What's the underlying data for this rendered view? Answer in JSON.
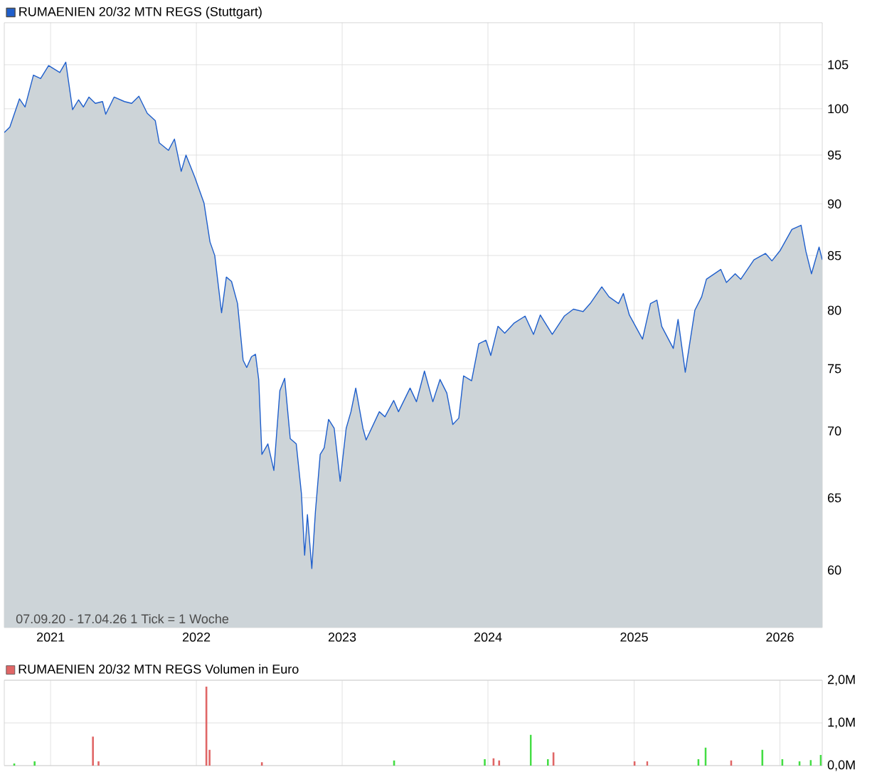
{
  "chart_data": [
    {
      "type": "area",
      "log": "y",
      "grid": true,
      "legend": "top left",
      "xlim": [
        "2020-09-07",
        "2026-04-17"
      ],
      "xticks": [
        {
          "value": "2021-01-01",
          "label": "2021"
        },
        {
          "value": "2022-01-01",
          "label": "2022"
        },
        {
          "value": "2023-01-01",
          "label": "2023"
        },
        {
          "value": "2024-01-01",
          "label": "2024"
        },
        {
          "value": "2025-01-01",
          "label": "2025"
        },
        {
          "value": "2026-01-01",
          "label": "2026"
        }
      ],
      "ylim": [
        56.3,
        110
      ],
      "yticks": [
        60,
        65,
        70,
        75,
        80,
        85,
        90,
        95,
        100,
        105
      ],
      "annotations": [
        "07.09.20 - 17.04.26   1 Tick = 1 Woche"
      ],
      "series": [
        {
          "name": "RUMAENIEN 20/32 MTN REGS (Stuttgart)",
          "color": "#1f5fcc",
          "x": [
            "2020-09-07",
            "2020-09-21",
            "2020-10-15",
            "2020-10-29",
            "2020-11-19",
            "2020-12-07",
            "2020-12-27",
            "2021-01-24",
            "2021-02-08",
            "2021-02-25",
            "2021-03-12",
            "2021-03-24",
            "2021-04-07",
            "2021-04-23",
            "2021-05-11",
            "2021-05-19",
            "2021-06-09",
            "2021-07-05",
            "2021-07-23",
            "2021-08-10",
            "2021-08-31",
            "2021-09-20",
            "2021-09-30",
            "2021-10-23",
            "2021-11-07",
            "2021-11-24",
            "2021-12-06",
            "2021-12-28",
            "2022-01-20",
            "2022-02-04",
            "2022-02-16",
            "2022-03-05",
            "2022-03-17",
            "2022-03-30",
            "2022-04-14",
            "2022-04-28",
            "2022-05-07",
            "2022-05-19",
            "2022-05-29",
            "2022-06-06",
            "2022-06-14",
            "2022-06-29",
            "2022-07-14",
            "2022-07-29",
            "2022-08-10",
            "2022-08-24",
            "2022-09-08",
            "2022-09-21",
            "2022-09-29",
            "2022-10-06",
            "2022-10-17",
            "2022-10-26",
            "2022-11-07",
            "2022-11-17",
            "2022-11-28",
            "2022-12-12",
            "2022-12-27",
            "2023-01-11",
            "2023-01-23",
            "2023-02-04",
            "2023-02-22",
            "2023-03-02",
            "2023-04-04",
            "2023-04-18",
            "2023-05-10",
            "2023-05-22",
            "2023-06-20",
            "2023-07-06",
            "2023-07-26",
            "2023-08-16",
            "2023-09-03",
            "2023-09-20",
            "2023-10-05",
            "2023-10-20",
            "2023-11-01",
            "2023-11-21",
            "2023-12-09",
            "2023-12-27",
            "2024-01-08",
            "2024-01-26",
            "2024-02-12",
            "2024-03-07",
            "2024-04-03",
            "2024-04-24",
            "2024-05-11",
            "2024-06-10",
            "2024-07-10",
            "2024-08-02",
            "2024-08-26",
            "2024-09-13",
            "2024-10-12",
            "2024-10-30",
            "2024-11-23",
            "2024-12-05",
            "2024-12-20",
            "2025-01-22",
            "2025-02-11",
            "2025-02-27",
            "2025-03-11",
            "2025-04-09",
            "2025-04-21",
            "2025-05-09",
            "2025-06-02",
            "2025-06-19",
            "2025-07-01",
            "2025-08-06",
            "2025-08-20",
            "2025-09-11",
            "2025-09-25",
            "2025-10-28",
            "2025-11-26",
            "2025-12-12",
            "2026-01-02",
            "2026-01-31",
            "2026-02-23",
            "2026-03-07",
            "2026-03-21",
            "2026-04-09",
            "2026-04-17"
          ],
          "values": [
            97.4,
            98.0,
            101.1,
            100.2,
            103.8,
            103.4,
            104.9,
            104.1,
            105.3,
            99.9,
            101.0,
            100.2,
            101.3,
            100.6,
            100.8,
            99.4,
            101.3,
            100.8,
            100.6,
            101.4,
            99.5,
            98.7,
            96.3,
            95.5,
            96.7,
            93.3,
            95.0,
            92.7,
            90.1,
            86.3,
            85.0,
            79.8,
            83.0,
            82.6,
            80.6,
            75.7,
            75.1,
            76.0,
            76.2,
            74.1,
            68.2,
            69.0,
            67.0,
            73.2,
            74.2,
            69.4,
            69.0,
            65.3,
            61.0,
            63.8,
            60.1,
            64.0,
            68.2,
            68.7,
            70.9,
            70.2,
            66.2,
            70.2,
            71.5,
            73.4,
            70.2,
            69.3,
            71.5,
            71.1,
            72.4,
            71.5,
            73.4,
            72.3,
            74.8,
            72.3,
            74.1,
            73.0,
            70.5,
            71.0,
            74.4,
            74.0,
            77.1,
            77.4,
            76.1,
            78.6,
            78.0,
            78.9,
            79.5,
            77.9,
            79.6,
            77.9,
            79.5,
            80.1,
            79.9,
            80.6,
            82.1,
            81.2,
            80.6,
            81.5,
            79.6,
            77.5,
            80.6,
            80.9,
            78.6,
            76.7,
            79.2,
            74.7,
            80.0,
            81.2,
            82.8,
            83.7,
            82.5,
            83.3,
            82.8,
            84.6,
            85.2,
            84.5,
            85.5,
            87.5,
            87.9,
            85.4,
            83.3,
            85.8,
            84.6
          ]
        }
      ]
    },
    {
      "type": "bar",
      "grid": true,
      "legend": "top left",
      "tick_labels": "y",
      "xlim": [
        "2020-09-07",
        "2026-04-17"
      ],
      "xticks": [
        {
          "value": "2021-01-01",
          "label": null
        },
        {
          "value": "2022-01-01",
          "label": null
        },
        {
          "value": "2023-01-01",
          "label": null
        },
        {
          "value": "2024-01-01",
          "label": null
        },
        {
          "value": "2025-01-01",
          "label": null
        },
        {
          "value": "2026-01-01",
          "label": null
        }
      ],
      "ylim": [
        0,
        2
      ],
      "yticks": [
        {
          "value": 0,
          "label": "0,0M"
        },
        {
          "value": 1,
          "label": "1,0M"
        },
        {
          "value": 2,
          "label": "2,0M"
        }
      ],
      "series": [
        {
          "name": "RUMAENIEN 20/32 MTN REGS Volumen in Euro",
          "color": "#e06666",
          "x": [
            "2020-10-02",
            "2020-11-22",
            "2021-04-17",
            "2021-05-01",
            "2022-01-26",
            "2022-02-03",
            "2022-06-14",
            "2023-05-11",
            "2023-12-24",
            "2024-01-15",
            "2024-01-29",
            "2024-04-17",
            "2024-05-30",
            "2024-06-13",
            "2025-01-02",
            "2025-02-03",
            "2025-06-11",
            "2025-06-29",
            "2025-09-01",
            "2025-11-18",
            "2026-01-07",
            "2026-02-19",
            "2026-03-19",
            "2026-04-13"
          ],
          "values": [
            0.05,
            0.1,
            0.68,
            0.1,
            1.85,
            0.37,
            0.08,
            0.12,
            0.15,
            0.17,
            0.12,
            0.72,
            0.15,
            0.31,
            0.1,
            0.1,
            0.15,
            0.42,
            0.12,
            0.37,
            0.15,
            0.1,
            0.13,
            0.25
          ],
          "colors": [
            "#44dd44",
            "#44dd44",
            "#e06666",
            "#e06666",
            "#e06666",
            "#e06666",
            "#e06666",
            "#44dd44",
            "#44dd44",
            "#e06666",
            "#e06666",
            "#44dd44",
            "#44dd44",
            "#e06666",
            "#e06666",
            "#e06666",
            "#44dd44",
            "#44dd44",
            "#e06666",
            "#44dd44",
            "#44dd44",
            "#44dd44",
            "#44dd44",
            "#44dd44"
          ]
        }
      ]
    }
  ]
}
